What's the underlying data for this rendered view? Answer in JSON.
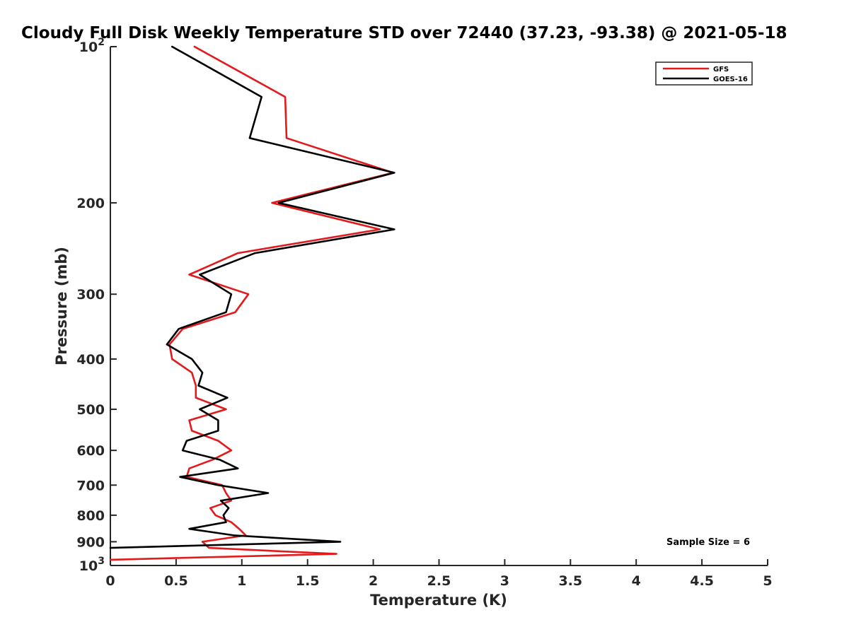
{
  "chart_data": {
    "type": "line",
    "title": "Cloudy Full Disk Weekly Temperature STD over 72440 (37.23, -93.38) @ 2021-05-18",
    "xlabel": "Temperature (K)",
    "ylabel": "Pressure (mb)",
    "xlim": [
      0,
      5
    ],
    "ylim": [
      100,
      1000
    ],
    "y_scale": "log",
    "y_reversed": true,
    "grid": false,
    "legend_position": "top-right",
    "xticks": [
      0,
      0.5,
      1,
      1.5,
      2,
      2.5,
      3,
      3.5,
      4,
      4.5,
      5
    ],
    "xtick_labels": [
      "0",
      "0.5",
      "1",
      "1.5",
      "2",
      "2.5",
      "3",
      "3.5",
      "4",
      "4.5",
      "5"
    ],
    "yticks": [
      {
        "value": 100,
        "base": "10",
        "exp": "2"
      },
      {
        "value": 200,
        "label": "200"
      },
      {
        "value": 300,
        "label": "300"
      },
      {
        "value": 400,
        "label": "400"
      },
      {
        "value": 500,
        "label": "500"
      },
      {
        "value": 600,
        "label": "600"
      },
      {
        "value": 700,
        "label": "700"
      },
      {
        "value": 800,
        "label": "800"
      },
      {
        "value": 900,
        "label": "900"
      },
      {
        "value": 1000,
        "base": "10",
        "exp": "3"
      }
    ],
    "series": [
      {
        "name": "GFS",
        "color": "#e31a1c",
        "points": [
          [
            0.64,
            100
          ],
          [
            1.33,
            125
          ],
          [
            1.34,
            150
          ],
          [
            2.15,
            175
          ],
          [
            1.23,
            200
          ],
          [
            2.05,
            225
          ],
          [
            0.97,
            250
          ],
          [
            0.6,
            275
          ],
          [
            1.05,
            300
          ],
          [
            0.95,
            325
          ],
          [
            0.55,
            350
          ],
          [
            0.45,
            375
          ],
          [
            0.47,
            400
          ],
          [
            0.62,
            425
          ],
          [
            0.65,
            450
          ],
          [
            0.65,
            475
          ],
          [
            0.88,
            500
          ],
          [
            0.6,
            525
          ],
          [
            0.62,
            550
          ],
          [
            0.82,
            575
          ],
          [
            0.92,
            600
          ],
          [
            0.78,
            625
          ],
          [
            0.6,
            650
          ],
          [
            0.58,
            675
          ],
          [
            0.85,
            700
          ],
          [
            0.88,
            725
          ],
          [
            0.92,
            750
          ],
          [
            0.76,
            775
          ],
          [
            0.8,
            800
          ],
          [
            0.92,
            825
          ],
          [
            0.98,
            850
          ],
          [
            1.03,
            875
          ],
          [
            0.7,
            900
          ],
          [
            0.75,
            925
          ],
          [
            1.72,
            950
          ],
          [
            0.0,
            975
          ]
        ]
      },
      {
        "name": "GOES-16",
        "color": "#000000",
        "points": [
          [
            0.47,
            100
          ],
          [
            1.15,
            125
          ],
          [
            1.06,
            150
          ],
          [
            2.16,
            175
          ],
          [
            1.28,
            200
          ],
          [
            2.16,
            225
          ],
          [
            1.1,
            250
          ],
          [
            0.68,
            275
          ],
          [
            0.92,
            300
          ],
          [
            0.88,
            325
          ],
          [
            0.52,
            350
          ],
          [
            0.43,
            375
          ],
          [
            0.62,
            400
          ],
          [
            0.7,
            425
          ],
          [
            0.67,
            450
          ],
          [
            0.89,
            475
          ],
          [
            0.68,
            500
          ],
          [
            0.82,
            525
          ],
          [
            0.82,
            550
          ],
          [
            0.58,
            575
          ],
          [
            0.55,
            600
          ],
          [
            0.83,
            625
          ],
          [
            0.97,
            650
          ],
          [
            0.53,
            675
          ],
          [
            0.82,
            700
          ],
          [
            1.2,
            725
          ],
          [
            0.84,
            750
          ],
          [
            0.9,
            775
          ],
          [
            0.86,
            800
          ],
          [
            0.88,
            825
          ],
          [
            0.6,
            850
          ],
          [
            0.94,
            875
          ],
          [
            1.75,
            900
          ],
          [
            0.0,
            925
          ]
        ]
      }
    ],
    "annotation": "Sample Size = 6"
  }
}
